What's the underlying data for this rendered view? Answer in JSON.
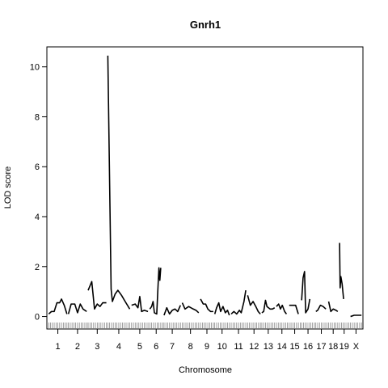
{
  "chart_data": {
    "type": "line",
    "title": "Gnrh1",
    "xlabel": "Chromosome",
    "ylabel": "LOD score",
    "ylim": [
      -0.5,
      10.8
    ],
    "yticks": [
      0,
      2,
      4,
      6,
      8,
      10
    ],
    "grid": false,
    "legend": "none",
    "line_color": "#000000",
    "chromosomes": [
      {
        "label": "1",
        "start": 0,
        "end": 100,
        "points": [
          [
            0,
            0.1
          ],
          [
            15,
            0.2
          ],
          [
            30,
            0.2
          ],
          [
            45,
            0.55
          ],
          [
            60,
            0.55
          ],
          [
            70,
            0.7
          ],
          [
            85,
            0.45
          ],
          [
            100,
            0.1
          ]
        ]
      },
      {
        "label": "2",
        "start": 108,
        "end": 208,
        "points": [
          [
            0,
            0.1
          ],
          [
            15,
            0.5
          ],
          [
            35,
            0.5
          ],
          [
            50,
            0.15
          ],
          [
            65,
            0.5
          ],
          [
            80,
            0.3
          ],
          [
            100,
            0.2
          ]
        ]
      },
      {
        "label": "3",
        "start": 216,
        "end": 316,
        "points": [
          [
            0,
            1.05
          ],
          [
            20,
            1.4
          ],
          [
            35,
            0.3
          ],
          [
            50,
            0.5
          ],
          [
            65,
            0.4
          ],
          [
            80,
            0.55
          ],
          [
            100,
            0.55
          ]
        ]
      },
      {
        "label": "4",
        "start": 324,
        "end": 444,
        "points": [
          [
            0,
            10.45
          ],
          [
            18,
            1.1
          ],
          [
            25,
            0.6
          ],
          [
            40,
            0.9
          ],
          [
            55,
            1.05
          ],
          [
            75,
            0.85
          ],
          [
            95,
            0.6
          ],
          [
            120,
            0.3
          ]
        ]
      },
      {
        "label": "5",
        "start": 454,
        "end": 544,
        "points": [
          [
            0,
            0.45
          ],
          [
            20,
            0.5
          ],
          [
            35,
            0.35
          ],
          [
            45,
            0.8
          ],
          [
            55,
            0.2
          ],
          [
            70,
            0.25
          ],
          [
            90,
            0.2
          ]
        ]
      },
      {
        "label": "6",
        "start": 554,
        "end": 624,
        "points": [
          [
            0,
            0.3
          ],
          [
            10,
            0.4
          ],
          [
            18,
            0.6
          ],
          [
            25,
            0.15
          ],
          [
            38,
            0.1
          ],
          [
            45,
            1.2
          ],
          [
            50,
            1.95
          ],
          [
            55,
            1.45
          ],
          [
            60,
            1.95
          ]
        ]
      },
      {
        "label": "7",
        "start": 632,
        "end": 722,
        "points": [
          [
            0,
            0.05
          ],
          [
            15,
            0.35
          ],
          [
            30,
            0.1
          ],
          [
            45,
            0.25
          ],
          [
            60,
            0.3
          ],
          [
            75,
            0.2
          ],
          [
            90,
            0.45
          ]
        ]
      },
      {
        "label": "8",
        "start": 732,
        "end": 822,
        "points": [
          [
            0,
            0.55
          ],
          [
            15,
            0.3
          ],
          [
            35,
            0.4
          ],
          [
            60,
            0.3
          ],
          [
            75,
            0.25
          ],
          [
            90,
            0.15
          ]
        ]
      },
      {
        "label": "9",
        "start": 832,
        "end": 902,
        "points": [
          [
            0,
            0.7
          ],
          [
            15,
            0.5
          ],
          [
            28,
            0.5
          ],
          [
            40,
            0.3
          ],
          [
            55,
            0.2
          ],
          [
            70,
            0.2
          ]
        ]
      },
      {
        "label": "10",
        "start": 910,
        "end": 990,
        "points": [
          [
            0,
            0.1
          ],
          [
            10,
            0.35
          ],
          [
            22,
            0.55
          ],
          [
            32,
            0.2
          ],
          [
            45,
            0.4
          ],
          [
            58,
            0.15
          ],
          [
            70,
            0.25
          ],
          [
            80,
            0.05
          ]
        ]
      },
      {
        "label": "11",
        "start": 1000,
        "end": 1080,
        "points": [
          [
            0,
            0.1
          ],
          [
            15,
            0.2
          ],
          [
            30,
            0.1
          ],
          [
            45,
            0.25
          ],
          [
            55,
            0.15
          ],
          [
            70,
            0.6
          ],
          [
            80,
            1.05
          ]
        ]
      },
      {
        "label": "12",
        "start": 1090,
        "end": 1160,
        "points": [
          [
            0,
            0.85
          ],
          [
            15,
            0.45
          ],
          [
            30,
            0.6
          ],
          [
            45,
            0.4
          ],
          [
            58,
            0.2
          ],
          [
            70,
            0.1
          ]
        ]
      },
      {
        "label": "13",
        "start": 1168,
        "end": 1238,
        "points": [
          [
            0,
            0.15
          ],
          [
            10,
            0.2
          ],
          [
            20,
            0.65
          ],
          [
            28,
            0.4
          ],
          [
            45,
            0.3
          ],
          [
            58,
            0.3
          ],
          [
            70,
            0.35
          ]
        ]
      },
      {
        "label": "14",
        "start": 1248,
        "end": 1308,
        "points": [
          [
            0,
            0.4
          ],
          [
            12,
            0.5
          ],
          [
            22,
            0.3
          ],
          [
            32,
            0.45
          ],
          [
            45,
            0.2
          ],
          [
            55,
            0.1
          ]
        ]
      },
      {
        "label": "15",
        "start": 1318,
        "end": 1378,
        "points": [
          [
            0,
            0.45
          ],
          [
            20,
            0.45
          ],
          [
            35,
            0.45
          ],
          [
            50,
            0.1
          ]
        ]
      },
      {
        "label": "16",
        "start": 1386,
        "end": 1456,
        "points": [
          [
            0,
            0.65
          ],
          [
            8,
            1.55
          ],
          [
            16,
            1.8
          ],
          [
            22,
            0.15
          ],
          [
            35,
            0.3
          ],
          [
            45,
            0.7
          ]
        ]
      },
      {
        "label": "17",
        "start": 1464,
        "end": 1524,
        "points": [
          [
            0,
            0.2
          ],
          [
            10,
            0.25
          ],
          [
            25,
            0.45
          ],
          [
            40,
            0.4
          ],
          [
            55,
            0.3
          ]
        ]
      },
      {
        "label": "18",
        "start": 1534,
        "end": 1584,
        "points": [
          [
            0,
            0.6
          ],
          [
            12,
            0.2
          ],
          [
            25,
            0.3
          ],
          [
            40,
            0.25
          ],
          [
            50,
            0.2
          ]
        ]
      },
      {
        "label": "19",
        "start": 1594,
        "end": 1644,
        "points": [
          [
            0,
            2.95
          ],
          [
            3,
            1.15
          ],
          [
            7,
            1.6
          ],
          [
            14,
            1.3
          ],
          [
            22,
            0.7
          ]
        ]
      },
      {
        "label": "X",
        "start": 1654,
        "end": 1714,
        "points": [
          [
            0,
            0.0
          ],
          [
            20,
            0.05
          ],
          [
            40,
            0.05
          ],
          [
            60,
            0.05
          ]
        ]
      }
    ],
    "xlim": [
      -10,
      1722
    ]
  }
}
